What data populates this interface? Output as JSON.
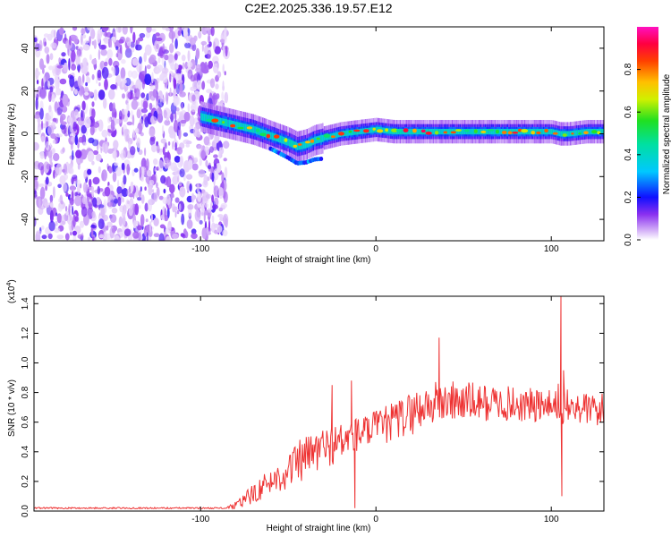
{
  "chart_data": [
    {
      "type": "heatmap",
      "title": "C2E2.2025.336.19.57.E12",
      "xlabel": "Height of straight line (km)",
      "ylabel": "Frequency (Hz)",
      "xlim": [
        -195,
        130
      ],
      "ylim": [
        -50,
        50
      ],
      "x_ticks": [
        -100,
        0,
        100
      ],
      "y_ticks": [
        -40,
        -20,
        0,
        20,
        40
      ],
      "colorbar": {
        "label": "Normalized spectral amplitude",
        "range": [
          0.0,
          1.0
        ],
        "ticks": [
          0.0,
          0.2,
          0.4,
          0.6,
          0.8
        ],
        "tick_labels": [
          "0.0",
          "0.2",
          "0.4",
          "0.6",
          "0.8"
        ],
        "colormap": [
          "#ffffff",
          "#c8a8f0",
          "#7a20f0",
          "#0000ff",
          "#00c8ff",
          "#00e060",
          "#ffee00",
          "#ff8800",
          "#ff0000",
          "#ff00aa"
        ]
      },
      "noise_region_x": [
        -195,
        -85
      ],
      "signal_track": {
        "x": [
          -100,
          -90,
          -80,
          -70,
          -60,
          -50,
          -45,
          -40,
          -35,
          -30,
          -20,
          -10,
          0,
          10,
          20,
          30,
          40,
          50,
          60,
          70,
          80,
          90,
          100,
          105,
          110,
          120,
          130
        ],
        "freq": [
          8,
          6,
          4,
          2,
          -1,
          -4,
          -6,
          -5,
          -3,
          -2,
          0,
          1,
          2,
          1,
          1,
          1,
          1,
          1,
          1,
          1,
          1,
          1,
          1,
          0,
          0,
          1,
          1
        ]
      }
    },
    {
      "type": "line",
      "xlabel": "Height of straight line (km)",
      "ylabel": "SNR (10 * v/v)",
      "y_scale_label": "(x10",
      "y_scale_exp": "4",
      "y_scale_close": ")",
      "xlim": [
        -195,
        130
      ],
      "ylim": [
        0.0,
        1.45
      ],
      "x_ticks": [
        -100,
        0,
        100
      ],
      "y_ticks": [
        0.0,
        0.2,
        0.4,
        0.6,
        0.8,
        1.0,
        1.2,
        1.4
      ],
      "y_tick_labels": [
        "0.0",
        "0.2",
        "0.4",
        "0.6",
        "0.8",
        "1.0",
        "1.2",
        "1.4"
      ],
      "color": "#ee3333",
      "envelope": {
        "x": [
          -195,
          -85,
          -80,
          -75,
          -70,
          -65,
          -60,
          -55,
          -50,
          -45,
          -40,
          -35,
          -30,
          -25,
          -20,
          -15,
          -10,
          -5,
          0,
          10,
          20,
          30,
          40,
          50,
          60,
          70,
          80,
          90,
          100,
          110,
          120,
          130
        ],
        "mean": [
          0.02,
          0.02,
          0.04,
          0.07,
          0.12,
          0.16,
          0.2,
          0.23,
          0.27,
          0.32,
          0.36,
          0.4,
          0.42,
          0.45,
          0.46,
          0.5,
          0.52,
          0.54,
          0.56,
          0.6,
          0.66,
          0.72,
          0.74,
          0.74,
          0.73,
          0.73,
          0.72,
          0.71,
          0.7,
          0.7,
          0.69,
          0.68
        ],
        "spread": [
          0.005,
          0.005,
          0.03,
          0.05,
          0.07,
          0.08,
          0.09,
          0.1,
          0.12,
          0.15,
          0.15,
          0.15,
          0.15,
          0.14,
          0.14,
          0.14,
          0.12,
          0.12,
          0.12,
          0.14,
          0.15,
          0.15,
          0.15,
          0.14,
          0.13,
          0.12,
          0.12,
          0.12,
          0.12,
          0.12,
          0.12,
          0.12
        ]
      },
      "spikes": [
        {
          "x": -100,
          "y": 0.02
        },
        {
          "x": -25,
          "y": 0.85
        },
        {
          "x": -14,
          "y": 0.88
        },
        {
          "x": -12,
          "y": 0.02
        },
        {
          "x": 36,
          "y": 1.17
        },
        {
          "x": 104,
          "y": 0.86
        },
        {
          "x": 105.5,
          "y": 1.45
        },
        {
          "x": 106,
          "y": 0.1
        },
        {
          "x": 107,
          "y": 0.95
        }
      ]
    }
  ]
}
